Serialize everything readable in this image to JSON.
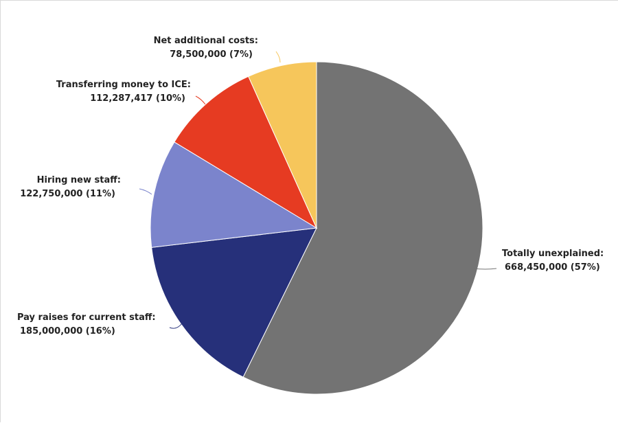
{
  "chart_data": {
    "type": "pie",
    "title": "",
    "slices": [
      {
        "label": "Totally unexplained:",
        "value_text": "668,450,000 (57%)",
        "value": 668450000,
        "color": "#737373"
      },
      {
        "label": "Pay raises for current staff:",
        "value_text": "185,000,000 (16%)",
        "value": 185000000,
        "color": "#26307a"
      },
      {
        "label": "Hiring new staff:",
        "value_text": "122,750,000 (11%)",
        "value": 122750000,
        "color": "#7b84cc"
      },
      {
        "label": "Transferring money to ICE:",
        "value_text": "112,287,417 (10%)",
        "value": 112287417,
        "color": "#e63b22"
      },
      {
        "label": "Net additional costs:",
        "value_text": "78,500,000 (7%)",
        "value": 78500000,
        "color": "#f6c65b"
      }
    ]
  }
}
